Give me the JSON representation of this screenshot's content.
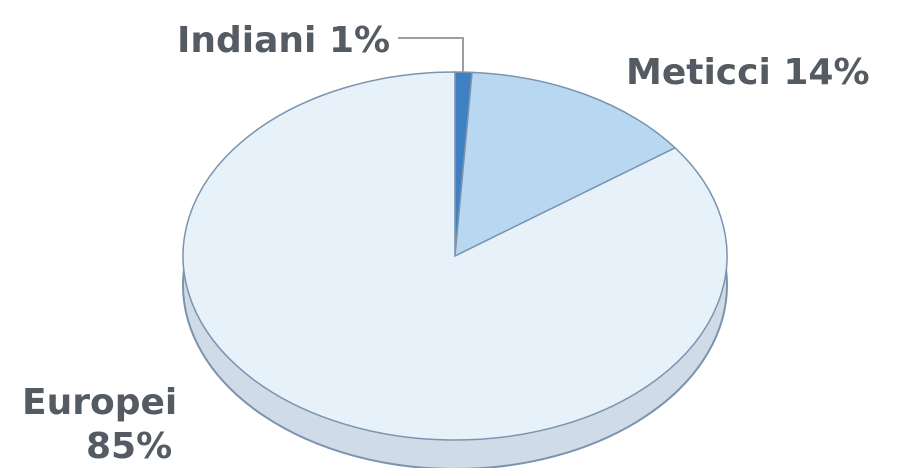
{
  "chart_data": {
    "type": "pie",
    "style": "3d",
    "slices": [
      {
        "label": "Europei",
        "value": 85,
        "value_text": "85%",
        "color": "#e6f1fa"
      },
      {
        "label": "Meticci",
        "value": 14,
        "value_text": "14%",
        "color": "#b8d8f2"
      },
      {
        "label": "Indiani",
        "value": 1,
        "value_text": "1%",
        "color": "#3f7fc4"
      }
    ],
    "edge_color": "#7c93ad",
    "side_color": "#cfdbe6",
    "leader_line_color": "#9a9fa6",
    "label_color": "#555b63"
  }
}
